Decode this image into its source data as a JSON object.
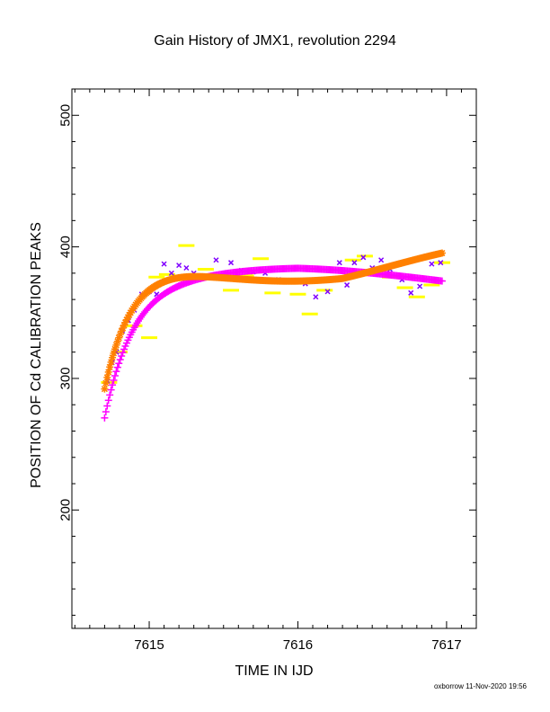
{
  "chart_data": {
    "type": "scatter",
    "title": "Gain History of JMX1, revolution 2294",
    "xlabel": "TIME IN IJD",
    "ylabel": "POSITION OF Cd CALIBRATION PEAKS",
    "xlim": [
      7614.48,
      7617.2
    ],
    "ylim": [
      110,
      520
    ],
    "x_ticks": [
      7615,
      7616,
      7617
    ],
    "x_ticklabels": [
      "7615",
      "7616",
      "7617"
    ],
    "y_ticks": [
      200,
      300,
      400,
      500
    ],
    "y_ticklabels": [
      "200",
      "300",
      "400",
      "500"
    ],
    "grid": false,
    "legend": "none",
    "series": [
      {
        "marker": "dash",
        "color": "#ffff00",
        "x": [
          7614.73,
          7614.8,
          7614.9,
          7615.0,
          7615.05,
          7615.12,
          7615.25,
          7615.38,
          7615.55,
          7615.65,
          7615.75,
          7615.83,
          7615.9,
          7616.0,
          7616.08,
          7616.18,
          7616.28,
          7616.37,
          7616.45,
          7616.55,
          7616.62,
          7616.72,
          7616.8,
          7616.9,
          7616.97
        ],
        "y": [
          297,
          320,
          340,
          331,
          377,
          379,
          401,
          383,
          367,
          378,
          391,
          365,
          374,
          364,
          349,
          367,
          376,
          390,
          393,
          379,
          377,
          369,
          362,
          371,
          388
        ]
      },
      {
        "marker": "x",
        "color": "#8000ff",
        "x": [
          7614.72,
          7614.75,
          7614.78,
          7614.82,
          7614.86,
          7614.9,
          7614.95,
          7615.0,
          7615.05,
          7615.1,
          7615.15,
          7615.2,
          7615.25,
          7615.3,
          7615.35,
          7615.45,
          7615.55,
          7615.62,
          7615.7,
          7615.78,
          7615.87,
          7615.95,
          7616.05,
          7616.12,
          7616.2,
          7616.28,
          7616.33,
          7616.38,
          7616.44,
          7616.5,
          7616.56,
          7616.62,
          7616.7,
          7616.76,
          7616.82,
          7616.9,
          7616.96
        ],
        "y": [
          298,
          312,
          320,
          336,
          344,
          352,
          364,
          366,
          364,
          387,
          380,
          386,
          384,
          380,
          378,
          390,
          388,
          382,
          381,
          380,
          375,
          374,
          372,
          362,
          366,
          388,
          371,
          388,
          392,
          384,
          390,
          383,
          375,
          365,
          370,
          387,
          388
        ]
      },
      {
        "name": "",
        "marker": "+",
        "color": "#ff00ff",
        "fit": "gain-model",
        "x_range": [
          7614.7,
          7616.97
        ],
        "y_start": 270
      },
      {
        "name": "",
        "marker": "*",
        "color": "#ff8000",
        "fit": "gain-model",
        "x_range": [
          7614.7,
          7616.97
        ],
        "y_start": 292
      }
    ]
  },
  "footer": {
    "text": "oxborrow 11-Nov-2020 19:56"
  }
}
